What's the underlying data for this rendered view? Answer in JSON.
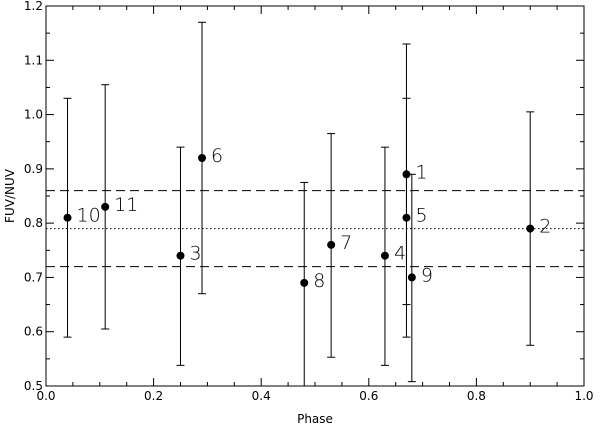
{
  "chart_data": {
    "type": "scatter",
    "xlabel": "Phase",
    "ylabel": "FUV/NUV",
    "xlim": [
      0.0,
      1.0
    ],
    "ylim": [
      0.5,
      1.2
    ],
    "x_ticks": [
      "0.0",
      "0.2",
      "0.4",
      "0.6",
      "0.8",
      "1.0"
    ],
    "y_ticks": [
      "0.5",
      "0.6",
      "0.7",
      "0.8",
      "0.9",
      "1.0",
      "1.1",
      "1.2"
    ],
    "grid": false,
    "points": [
      {
        "label": "1",
        "x": 0.67,
        "y": 0.89,
        "y_low": 0.65,
        "y_high": 1.13
      },
      {
        "label": "2",
        "x": 0.9,
        "y": 0.79,
        "y_low": 0.575,
        "y_high": 1.005
      },
      {
        "label": "3",
        "x": 0.25,
        "y": 0.74,
        "y_low": 0.538,
        "y_high": 0.94
      },
      {
        "label": "4",
        "x": 0.63,
        "y": 0.74,
        "y_low": 0.538,
        "y_high": 0.94
      },
      {
        "label": "5",
        "x": 0.67,
        "y": 0.81,
        "y_low": 0.59,
        "y_high": 1.03
      },
      {
        "label": "6",
        "x": 0.29,
        "y": 0.92,
        "y_low": 0.67,
        "y_high": 1.17
      },
      {
        "label": "7",
        "x": 0.53,
        "y": 0.76,
        "y_low": 0.553,
        "y_high": 0.965
      },
      {
        "label": "8",
        "x": 0.48,
        "y": 0.69,
        "y_low": 0.5,
        "y_high": 0.875
      },
      {
        "label": "9",
        "x": 0.68,
        "y": 0.7,
        "y_low": 0.508,
        "y_high": 0.89
      },
      {
        "label": "10",
        "x": 0.04,
        "y": 0.81,
        "y_low": 0.59,
        "y_high": 1.03
      },
      {
        "label": "11",
        "x": 0.11,
        "y": 0.83,
        "y_low": 0.605,
        "y_high": 1.055
      }
    ],
    "reference_lines": [
      {
        "y": 0.86,
        "style": "dashed"
      },
      {
        "y": 0.79,
        "style": "dotted"
      },
      {
        "y": 0.72,
        "style": "dashed"
      }
    ]
  }
}
